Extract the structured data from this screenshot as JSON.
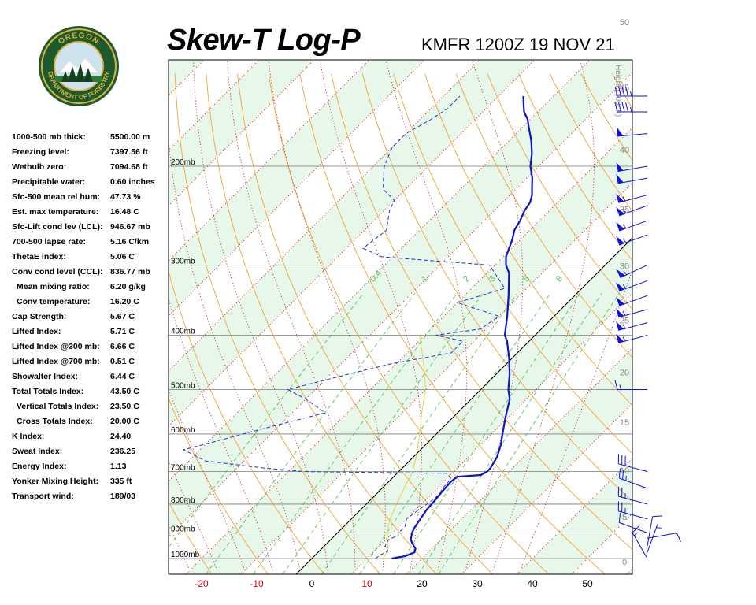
{
  "header": {
    "title": "Skew-T Log-P",
    "subtitle": "KMFR 1200Z 19 NOV 21"
  },
  "logo": {
    "top_text": "OREGON",
    "bottom_text": "DEPARTMENT OF FORESTRY",
    "colors": {
      "ring": "#1f5a2e",
      "gold": "#d8b43c",
      "sky": "#cfe3ee"
    }
  },
  "indices": [
    {
      "label": "1000-500 mb thick:",
      "value": "5500.00 m",
      "indent": false
    },
    {
      "label": "Freezing level:",
      "value": "7397.56 ft",
      "indent": false
    },
    {
      "label": "Wetbulb zero:",
      "value": "7094.68 ft",
      "indent": false
    },
    {
      "label": "Precipitable water:",
      "value": "0.60 inches",
      "indent": false
    },
    {
      "label": "Sfc-500 mean rel hum:",
      "value": "47.73 %",
      "indent": false
    },
    {
      "label": "Est. max temperature:",
      "value": "16.48 C",
      "indent": false
    },
    {
      "label": "Sfc-Lift cond lev (LCL):",
      "value": "946.67 mb",
      "indent": false
    },
    {
      "label": "700-500 lapse rate:",
      "value": "5.16 C/km",
      "indent": false
    },
    {
      "label": "ThetaE index:",
      "value": "5.06 C",
      "indent": false
    },
    {
      "label": "Conv cond level (CCL):",
      "value": "836.77 mb",
      "indent": false
    },
    {
      "label": "Mean mixing ratio:",
      "value": "6.20 g/kg",
      "indent": true
    },
    {
      "label": "Conv temperature:",
      "value": "16.20 C",
      "indent": true
    },
    {
      "label": "Cap Strength:",
      "value": "5.67 C",
      "indent": false
    },
    {
      "label": "Lifted Index:",
      "value": "5.71 C",
      "indent": false
    },
    {
      "label": "Lifted Index @300 mb:",
      "value": "6.66 C",
      "indent": false
    },
    {
      "label": "Lifted Index @700 mb:",
      "value": "0.51 C",
      "indent": false
    },
    {
      "label": "Showalter Index:",
      "value": "6.44 C",
      "indent": false
    },
    {
      "label": "Total Totals Index:",
      "value": "43.50 C",
      "indent": false
    },
    {
      "label": "Vertical Totals Index:",
      "value": "23.50 C",
      "indent": true
    },
    {
      "label": "Cross Totals Index:",
      "value": "20.00 C",
      "indent": true
    },
    {
      "label": "K Index:",
      "value": "24.40",
      "indent": false
    },
    {
      "label": "Sweat Index:",
      "value": "236.25",
      "indent": false
    },
    {
      "label": "Energy Index:",
      "value": "1.13",
      "indent": false
    },
    {
      "label": "Yonker Mixing Height:",
      "value": "335 ft",
      "indent": false
    },
    {
      "label": "Transport wind:",
      "value": "189/03",
      "indent": false
    }
  ],
  "chart_data": {
    "type": "line",
    "x_ticks": [
      -20,
      -10,
      0,
      10,
      20,
      30,
      40,
      50
    ],
    "xlim": [
      -27,
      58
    ],
    "pressure_levels": [
      200,
      300,
      400,
      500,
      600,
      700,
      800,
      900,
      1000
    ],
    "pressure_label_suffix": "mb",
    "ylim_pressure": [
      150,
      1050
    ],
    "height_axis_label": "Height (1000ft)",
    "height_ticks": [
      0,
      5,
      10,
      15,
      20,
      25,
      30,
      35,
      40,
      45,
      50
    ],
    "mixing_ratio_labels": [
      "0.4",
      "1",
      "2",
      "3",
      "5",
      "8"
    ],
    "mixing_ratio_values": [
      0.4,
      1,
      2,
      3,
      5,
      8
    ],
    "colors": {
      "band": "#e7f7e9",
      "isobar": "#7d7d7d",
      "dry_adiabat": "#f2a23a",
      "isotherm": "#cc2222",
      "mixing_ratio": "#56c456",
      "temperature": "#0a16c8",
      "dewpoint": "#1b3cc0",
      "parcel": "#e6d24a",
      "freezing_line": "#000000",
      "x_tick_red": "#dd0000",
      "x_tick_black": "#000000",
      "height_labels": "#8a8a8a",
      "barbs": "#1010e0"
    },
    "series": [
      {
        "key": "temperature",
        "points": [
          [
            1000,
            14.5
          ],
          [
            990,
            16.5
          ],
          [
            975,
            17.5
          ],
          [
            960,
            17.0
          ],
          [
            940,
            15.5
          ],
          [
            925,
            14.5
          ],
          [
            900,
            13.5
          ],
          [
            880,
            13.0
          ],
          [
            850,
            12.5
          ],
          [
            820,
            12.0
          ],
          [
            790,
            11.8
          ],
          [
            760,
            11.5
          ],
          [
            730,
            11.3
          ],
          [
            715,
            11.5
          ],
          [
            710,
            15.5
          ],
          [
            700,
            16.0
          ],
          [
            690,
            16.0
          ],
          [
            660,
            15.2
          ],
          [
            630,
            13.8
          ],
          [
            600,
            12.0
          ],
          [
            560,
            9.5
          ],
          [
            520,
            7.0
          ],
          [
            500,
            5.0
          ],
          [
            470,
            2.5
          ],
          [
            440,
            -0.5
          ],
          [
            410,
            -4.0
          ],
          [
            400,
            -5.5
          ],
          [
            370,
            -8.5
          ],
          [
            340,
            -12.0
          ],
          [
            310,
            -16.0
          ],
          [
            300,
            -18.0
          ],
          [
            290,
            -19.5
          ],
          [
            270,
            -21.5
          ],
          [
            260,
            -22.8
          ],
          [
            250,
            -23.5
          ],
          [
            240,
            -24.5
          ],
          [
            232,
            -25.0
          ],
          [
            225,
            -26.0
          ],
          [
            220,
            -27.0
          ],
          [
            210,
            -29.0
          ],
          [
            200,
            -31.5
          ],
          [
            190,
            -33.5
          ],
          [
            180,
            -36.0
          ],
          [
            170,
            -39.0
          ],
          [
            165,
            -40.5
          ],
          [
            160,
            -42.5
          ],
          [
            155,
            -44.0
          ],
          [
            150,
            -45.5
          ]
        ]
      },
      {
        "key": "dewpoint",
        "points": [
          [
            1000,
            11.5
          ],
          [
            985,
            11.8
          ],
          [
            970,
            12.5
          ],
          [
            950,
            11.0
          ],
          [
            925,
            10.5
          ],
          [
            910,
            11.5
          ],
          [
            900,
            11.0
          ],
          [
            880,
            11.2
          ],
          [
            850,
            10.0
          ],
          [
            820,
            10.5
          ],
          [
            800,
            11.0
          ],
          [
            770,
            11.5
          ],
          [
            750,
            11.0
          ],
          [
            720,
            10.8
          ],
          [
            705,
            9.0
          ],
          [
            700,
            -17.0
          ],
          [
            690,
            -25.0
          ],
          [
            670,
            -37.0
          ],
          [
            640,
            -43.0
          ],
          [
            620,
            -39.0
          ],
          [
            590,
            -33.0
          ],
          [
            550,
            -24.0
          ],
          [
            520,
            -30.0
          ],
          [
            500,
            -35.0
          ],
          [
            470,
            -27.0
          ],
          [
            450,
            -21.0
          ],
          [
            430,
            -12.0
          ],
          [
            410,
            -12.0
          ],
          [
            400,
            -18.0
          ],
          [
            390,
            -11.0
          ],
          [
            370,
            -10.0
          ],
          [
            350,
            -20.0
          ],
          [
            330,
            -14.0
          ],
          [
            300,
            -21.0
          ],
          [
            290,
            -42.0
          ],
          [
            280,
            -47.0
          ],
          [
            260,
            -46.0
          ],
          [
            240,
            -49.0
          ],
          [
            230,
            -50.0
          ],
          [
            220,
            -54.0
          ],
          [
            210,
            -56.0
          ],
          [
            200,
            -58.0
          ],
          [
            185,
            -60.0
          ],
          [
            175,
            -60.0
          ],
          [
            165,
            -58.0
          ],
          [
            158,
            -57.0
          ],
          [
            150,
            -57.0
          ]
        ]
      },
      {
        "key": "parcel",
        "points": [
          [
            1000,
            13.0
          ],
          [
            960,
            12.0
          ],
          [
            950,
            11.5
          ],
          [
            900,
            9.0
          ],
          [
            850,
            7.0
          ],
          [
            800,
            5.5
          ],
          [
            750,
            4.0
          ],
          [
            700,
            2.5
          ],
          [
            650,
            0.0
          ],
          [
            600,
            -3.0
          ],
          [
            550,
            -6.5
          ],
          [
            500,
            -10.0
          ],
          [
            450,
            -15.0
          ],
          [
            420,
            -18.5
          ],
          [
            400,
            -21.0
          ]
        ]
      }
    ],
    "wind_barbs": [
      {
        "pressure": 1000,
        "direction": 330,
        "speed": 15
      },
      {
        "pressure": 975,
        "direction": 20,
        "speed": 5
      },
      {
        "pressure": 950,
        "direction": 10,
        "speed": 10
      },
      {
        "pressure": 920,
        "direction": 80,
        "speed": 10
      },
      {
        "pressure": 900,
        "direction": 290,
        "speed": 10
      },
      {
        "pressure": 850,
        "direction": 285,
        "speed": 25
      },
      {
        "pressure": 800,
        "direction": 285,
        "speed": 25
      },
      {
        "pressure": 750,
        "direction": 290,
        "speed": 25
      },
      {
        "pressure": 700,
        "direction": 285,
        "speed": 30
      },
      {
        "pressure": 500,
        "direction": 270,
        "speed": 15
      },
      {
        "pressure": 400,
        "direction": 255,
        "speed": 55
      },
      {
        "pressure": 380,
        "direction": 255,
        "speed": 55
      },
      {
        "pressure": 360,
        "direction": 255,
        "speed": 55
      },
      {
        "pressure": 340,
        "direction": 250,
        "speed": 50
      },
      {
        "pressure": 320,
        "direction": 250,
        "speed": 55
      },
      {
        "pressure": 300,
        "direction": 245,
        "speed": 55
      },
      {
        "pressure": 265,
        "direction": 250,
        "speed": 55
      },
      {
        "pressure": 250,
        "direction": 250,
        "speed": 55
      },
      {
        "pressure": 235,
        "direction": 250,
        "speed": 55
      },
      {
        "pressure": 225,
        "direction": 255,
        "speed": 55
      },
      {
        "pressure": 210,
        "direction": 260,
        "speed": 50
      },
      {
        "pressure": 200,
        "direction": 260,
        "speed": 50
      },
      {
        "pressure": 175,
        "direction": 265,
        "speed": 50
      },
      {
        "pressure": 160,
        "direction": 270,
        "speed": 45
      },
      {
        "pressure": 150,
        "direction": 270,
        "speed": 45
      }
    ]
  }
}
